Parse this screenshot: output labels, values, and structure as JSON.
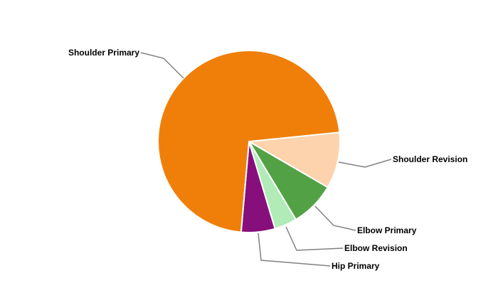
{
  "chart_data": {
    "type": "pie",
    "title": "",
    "legend": "none",
    "slices": [
      {
        "label": "Shoulder Revision",
        "value": 10,
        "color": "#fdd3ad"
      },
      {
        "label": "Elbow Primary",
        "value": 8,
        "color": "#52a245"
      },
      {
        "label": "Elbow Revision",
        "value": 4,
        "color": "#b0ebb8"
      },
      {
        "label": "Hip Primary",
        "value": 6,
        "color": "#860f7b"
      },
      {
        "label": "Shoulder Primary",
        "value": 72,
        "color": "#f07f09"
      }
    ],
    "label_line_color": "#808080"
  }
}
